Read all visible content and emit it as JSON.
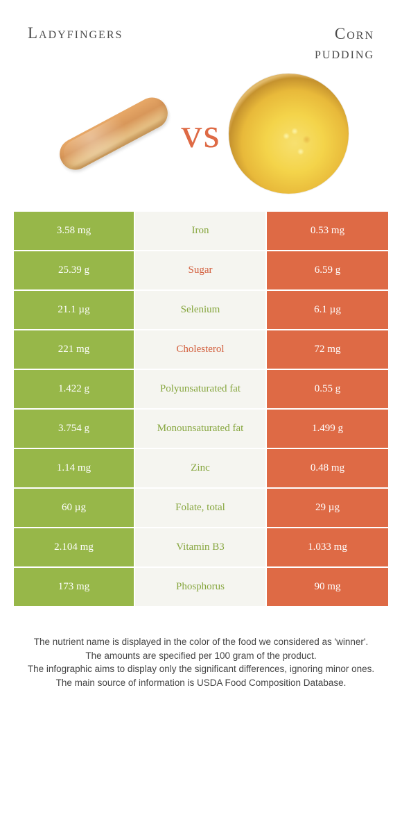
{
  "colors": {
    "green": "#97b749",
    "orange": "#de6a45",
    "midLabelGreen": "#86a63e",
    "midLabelOrange": "#d25d3b",
    "background": "#ffffff",
    "midBg": "#f5f5f0"
  },
  "header": {
    "left_title": "Ladyfingers",
    "right_title": "Corn\npudding",
    "vs": "vs"
  },
  "rows": [
    {
      "nutrient": "Iron",
      "left": "3.58 mg",
      "right": "0.53 mg",
      "winner": "left"
    },
    {
      "nutrient": "Sugar",
      "left": "25.39 g",
      "right": "6.59 g",
      "winner": "right"
    },
    {
      "nutrient": "Selenium",
      "left": "21.1 µg",
      "right": "6.1 µg",
      "winner": "left"
    },
    {
      "nutrient": "Cholesterol",
      "left": "221 mg",
      "right": "72 mg",
      "winner": "right"
    },
    {
      "nutrient": "Polyunsaturated fat",
      "left": "1.422 g",
      "right": "0.55 g",
      "winner": "left"
    },
    {
      "nutrient": "Monounsaturated fat",
      "left": "3.754 g",
      "right": "1.499 g",
      "winner": "left"
    },
    {
      "nutrient": "Zinc",
      "left": "1.14 mg",
      "right": "0.48 mg",
      "winner": "left"
    },
    {
      "nutrient": "Folate, total",
      "left": "60 µg",
      "right": "29 µg",
      "winner": "left"
    },
    {
      "nutrient": "Vitamin B3",
      "left": "2.104 mg",
      "right": "1.033 mg",
      "winner": "left"
    },
    {
      "nutrient": "Phosphorus",
      "left": "173 mg",
      "right": "90 mg",
      "winner": "left"
    }
  ],
  "footer": {
    "line1": "The nutrient name is displayed in the color of the food we considered as 'winner'.",
    "line2": "The amounts are specified per 100 gram of the product.",
    "line3": "The infographic aims to display only the significant differences, ignoring minor ones.",
    "line4": "The main source of information is USDA Food Composition Database."
  }
}
